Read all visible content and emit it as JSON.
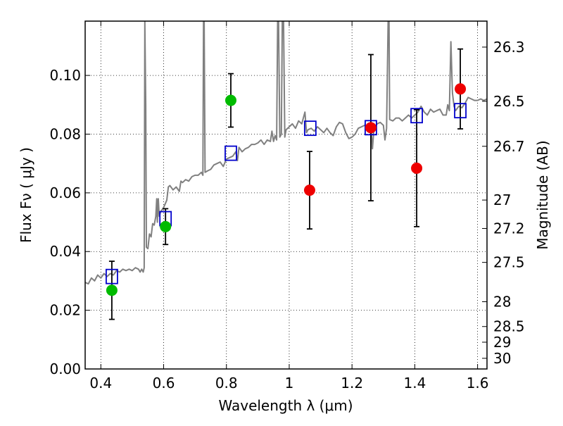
{
  "chart_data": {
    "type": "scatter",
    "xlabel": "Wavelength  λ (μm)",
    "ylabel": "Flux  Fν  ( μJy )",
    "y2label": "Magnitude (AB)",
    "xlim": [
      0.35,
      1.63
    ],
    "ylim": [
      0.0,
      0.1185
    ],
    "x_ticks": [
      0.4,
      0.6,
      0.8,
      1.0,
      1.2,
      1.4,
      1.6
    ],
    "x_tick_labels": [
      "0.4",
      "0.6",
      "0.8",
      "1",
      "1.2",
      "1.4",
      "1.6"
    ],
    "y_ticks": [
      0.0,
      0.02,
      0.04,
      0.06,
      0.08,
      0.1
    ],
    "y_tick_labels": [
      "0.00",
      "0.02",
      "0.04",
      "0.06",
      "0.08",
      "0.10"
    ],
    "mag_ticks": [
      26.3,
      26.5,
      26.7,
      27,
      27.2,
      27.5,
      28,
      28.5,
      29,
      30
    ],
    "mag_tick_labels": [
      "26.3",
      "26.5",
      "26.7",
      "27",
      "27.2",
      "27.5",
      "28",
      "28.5",
      "29",
      "30"
    ],
    "mag_zero_point": 23.9,
    "grid": true,
    "colors": {
      "model": "#808080",
      "optical_points": "#00bb00",
      "nir_points": "#ee0000",
      "model_boxes": "#0000cc",
      "errorbar": "#000000"
    },
    "series": [
      {
        "kind": "errorbar",
        "marker": "circle",
        "color": "#00bb00",
        "points": [
          {
            "x": 0.435,
            "y": 0.0268,
            "yerr": 0.0099
          },
          {
            "x": 0.606,
            "y": 0.0485,
            "yerr": 0.0061
          },
          {
            "x": 0.814,
            "y": 0.0915,
            "yerr": 0.0091
          }
        ]
      },
      {
        "kind": "errorbar",
        "marker": "circle",
        "color": "#ee0000",
        "points": [
          {
            "x": 1.065,
            "y": 0.0609,
            "yerr": 0.0132
          },
          {
            "x": 1.26,
            "y": 0.0822,
            "yerr": 0.0249
          },
          {
            "x": 1.406,
            "y": 0.0684,
            "yerr": 0.0199
          },
          {
            "x": 1.545,
            "y": 0.0954,
            "yerr": 0.0136
          }
        ]
      },
      {
        "kind": "markers",
        "marker": "open-square",
        "color": "#0000cc",
        "points": [
          {
            "x": 0.435,
            "y": 0.0315
          },
          {
            "x": 0.606,
            "y": 0.0512
          },
          {
            "x": 0.814,
            "y": 0.0735
          },
          {
            "x": 1.067,
            "y": 0.082
          },
          {
            "x": 1.26,
            "y": 0.0822
          },
          {
            "x": 1.406,
            "y": 0.0863
          },
          {
            "x": 1.545,
            "y": 0.088
          }
        ]
      },
      {
        "kind": "line",
        "color": "#808080",
        "points": [
          [
            0.35,
            0.0295
          ],
          [
            0.36,
            0.029
          ],
          [
            0.37,
            0.031
          ],
          [
            0.38,
            0.03
          ],
          [
            0.39,
            0.032
          ],
          [
            0.4,
            0.031
          ],
          [
            0.41,
            0.0325
          ],
          [
            0.42,
            0.0315
          ],
          [
            0.43,
            0.0325
          ],
          [
            0.44,
            0.032
          ],
          [
            0.45,
            0.0335
          ],
          [
            0.46,
            0.033
          ],
          [
            0.47,
            0.034
          ],
          [
            0.48,
            0.0335
          ],
          [
            0.49,
            0.034
          ],
          [
            0.5,
            0.0335
          ],
          [
            0.51,
            0.0345
          ],
          [
            0.52,
            0.034
          ],
          [
            0.525,
            0.033
          ],
          [
            0.53,
            0.034
          ],
          [
            0.535,
            0.033
          ],
          [
            0.538,
            0.0345
          ],
          [
            0.54,
            0.1185
          ],
          [
            0.543,
            0.09
          ],
          [
            0.545,
            0.0415
          ],
          [
            0.55,
            0.041
          ],
          [
            0.555,
            0.046
          ],
          [
            0.56,
            0.045
          ],
          [
            0.565,
            0.0495
          ],
          [
            0.57,
            0.049
          ],
          [
            0.575,
            0.052
          ],
          [
            0.578,
            0.058
          ],
          [
            0.58,
            0.05
          ],
          [
            0.583,
            0.058
          ],
          [
            0.586,
            0.052
          ],
          [
            0.59,
            0.0535
          ],
          [
            0.6,
            0.055
          ],
          [
            0.61,
            0.0575
          ],
          [
            0.615,
            0.062
          ],
          [
            0.62,
            0.0625
          ],
          [
            0.63,
            0.061
          ],
          [
            0.64,
            0.062
          ],
          [
            0.65,
            0.0605
          ],
          [
            0.655,
            0.064
          ],
          [
            0.66,
            0.0635
          ],
          [
            0.67,
            0.0645
          ],
          [
            0.68,
            0.064
          ],
          [
            0.69,
            0.0655
          ],
          [
            0.7,
            0.066
          ],
          [
            0.71,
            0.066
          ],
          [
            0.72,
            0.067
          ],
          [
            0.725,
            0.066
          ],
          [
            0.727,
            0.1185
          ],
          [
            0.729,
            0.1185
          ],
          [
            0.732,
            0.067
          ],
          [
            0.74,
            0.0675
          ],
          [
            0.75,
            0.068
          ],
          [
            0.76,
            0.0695
          ],
          [
            0.77,
            0.07
          ],
          [
            0.78,
            0.0705
          ],
          [
            0.79,
            0.069
          ],
          [
            0.8,
            0.0715
          ],
          [
            0.81,
            0.072
          ],
          [
            0.82,
            0.0725
          ],
          [
            0.83,
            0.074
          ],
          [
            0.835,
            0.071
          ],
          [
            0.84,
            0.0755
          ],
          [
            0.85,
            0.074
          ],
          [
            0.86,
            0.075
          ],
          [
            0.87,
            0.0755
          ],
          [
            0.88,
            0.0765
          ],
          [
            0.89,
            0.0765
          ],
          [
            0.9,
            0.077
          ],
          [
            0.91,
            0.078
          ],
          [
            0.92,
            0.0765
          ],
          [
            0.93,
            0.078
          ],
          [
            0.94,
            0.0775
          ],
          [
            0.945,
            0.081
          ],
          [
            0.95,
            0.0775
          ],
          [
            0.955,
            0.0795
          ],
          [
            0.96,
            0.078
          ],
          [
            0.963,
            0.1185
          ],
          [
            0.966,
            0.1185
          ],
          [
            0.97,
            0.079
          ],
          [
            0.975,
            0.08
          ],
          [
            0.978,
            0.1185
          ],
          [
            0.982,
            0.1185
          ],
          [
            0.986,
            0.079
          ],
          [
            0.99,
            0.0815
          ],
          [
            1.0,
            0.0825
          ],
          [
            1.01,
            0.0835
          ],
          [
            1.02,
            0.082
          ],
          [
            1.03,
            0.0845
          ],
          [
            1.04,
            0.0835
          ],
          [
            1.05,
            0.0875
          ],
          [
            1.055,
            0.0805
          ],
          [
            1.06,
            0.0815
          ],
          [
            1.07,
            0.082
          ],
          [
            1.08,
            0.081
          ],
          [
            1.09,
            0.0825
          ],
          [
            1.1,
            0.0815
          ],
          [
            1.11,
            0.0805
          ],
          [
            1.12,
            0.082
          ],
          [
            1.13,
            0.0805
          ],
          [
            1.14,
            0.0795
          ],
          [
            1.15,
            0.0825
          ],
          [
            1.16,
            0.084
          ],
          [
            1.17,
            0.0835
          ],
          [
            1.18,
            0.0805
          ],
          [
            1.19,
            0.0785
          ],
          [
            1.2,
            0.079
          ],
          [
            1.21,
            0.08
          ],
          [
            1.22,
            0.082
          ],
          [
            1.23,
            0.0825
          ],
          [
            1.24,
            0.083
          ],
          [
            1.25,
            0.0825
          ],
          [
            1.26,
            0.083
          ],
          [
            1.265,
            0.075
          ],
          [
            1.27,
            0.082
          ],
          [
            1.28,
            0.0835
          ],
          [
            1.29,
            0.084
          ],
          [
            1.3,
            0.083
          ],
          [
            1.305,
            0.078
          ],
          [
            1.31,
            0.082
          ],
          [
            1.315,
            0.1185
          ],
          [
            1.318,
            0.1185
          ],
          [
            1.32,
            0.085
          ],
          [
            1.33,
            0.0845
          ],
          [
            1.34,
            0.0855
          ],
          [
            1.35,
            0.0855
          ],
          [
            1.36,
            0.0845
          ],
          [
            1.37,
            0.0855
          ],
          [
            1.38,
            0.0865
          ],
          [
            1.39,
            0.0855
          ],
          [
            1.4,
            0.0865
          ],
          [
            1.41,
            0.0875
          ],
          [
            1.42,
            0.0895
          ],
          [
            1.43,
            0.0875
          ],
          [
            1.44,
            0.0865
          ],
          [
            1.45,
            0.0885
          ],
          [
            1.46,
            0.0875
          ],
          [
            1.47,
            0.088
          ],
          [
            1.48,
            0.0885
          ],
          [
            1.49,
            0.0865
          ],
          [
            1.5,
            0.0865
          ],
          [
            1.505,
            0.09
          ],
          [
            1.51,
            0.088
          ],
          [
            1.515,
            0.1115
          ],
          [
            1.52,
            0.094
          ],
          [
            1.525,
            0.0895
          ],
          [
            1.53,
            0.088
          ],
          [
            1.54,
            0.0895
          ],
          [
            1.55,
            0.089
          ],
          [
            1.56,
            0.0905
          ],
          [
            1.57,
            0.0925
          ],
          [
            1.58,
            0.092
          ],
          [
            1.59,
            0.0915
          ],
          [
            1.6,
            0.0915
          ],
          [
            1.61,
            0.092
          ],
          [
            1.62,
            0.0915
          ],
          [
            1.63,
            0.092
          ]
        ]
      }
    ]
  }
}
